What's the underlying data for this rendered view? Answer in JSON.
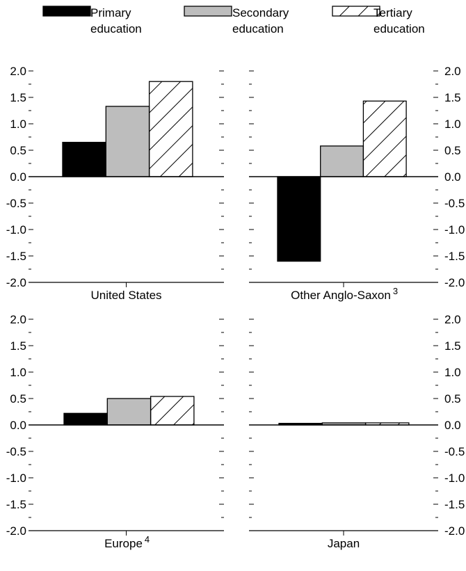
{
  "legend": [
    {
      "label_line1": "Primary",
      "label_line2": "education",
      "fill": "solid",
      "color": "#000000"
    },
    {
      "label_line1": "Secondary",
      "label_line2": "education",
      "fill": "solid",
      "color": "#bdbdbd"
    },
    {
      "label_line1": "Tertiary",
      "label_line2": "education",
      "fill": "hatch",
      "color": "#ffffff"
    }
  ],
  "chart_data": [
    {
      "type": "bar",
      "xlabel": "United States",
      "xlabel_sup": "",
      "categories": [
        "Primary education",
        "Secondary education",
        "Tertiary education"
      ],
      "values": [
        0.65,
        1.33,
        1.8
      ],
      "ylim": [
        -2.0,
        2.0
      ],
      "yticks": [
        "2.0",
        "1.5",
        "1.0",
        "0.5",
        "0.0",
        "-0.5",
        "-1.0",
        "-1.5",
        "-2.0"
      ],
      "axis_side": "left",
      "grid": false
    },
    {
      "type": "bar",
      "xlabel": "Other Anglo-Saxon",
      "xlabel_sup": "3",
      "categories": [
        "Primary education",
        "Secondary education",
        "Tertiary education"
      ],
      "values": [
        -1.6,
        0.58,
        1.43
      ],
      "ylim": [
        -2.0,
        2.0
      ],
      "yticks": [
        "2.0",
        "1.5",
        "1.0",
        "0.5",
        "0.0",
        "-0.5",
        "-1.0",
        "-1.5",
        "-2.0"
      ],
      "axis_side": "right",
      "grid": false
    },
    {
      "type": "bar",
      "xlabel": "Europe",
      "xlabel_sup": "4",
      "categories": [
        "Primary education",
        "Secondary education",
        "Tertiary education"
      ],
      "values": [
        0.22,
        0.5,
        0.54
      ],
      "ylim": [
        -2.0,
        2.0
      ],
      "yticks": [
        "2.0",
        "1.5",
        "1.0",
        "0.5",
        "0.0",
        "-0.5",
        "-1.0",
        "-1.5",
        "-2.0"
      ],
      "axis_side": "left",
      "grid": false
    },
    {
      "type": "bar",
      "xlabel": "Japan",
      "xlabel_sup": "",
      "categories": [
        "Primary education",
        "Secondary education",
        "Tertiary education"
      ],
      "values": [
        0.03,
        0.04,
        0.04
      ],
      "ylim": [
        -2.0,
        2.0
      ],
      "yticks": [
        "2.0",
        "1.5",
        "1.0",
        "0.5",
        "0.0",
        "-0.5",
        "-1.0",
        "-1.5",
        "-2.0"
      ],
      "axis_side": "right",
      "grid": false
    }
  ]
}
